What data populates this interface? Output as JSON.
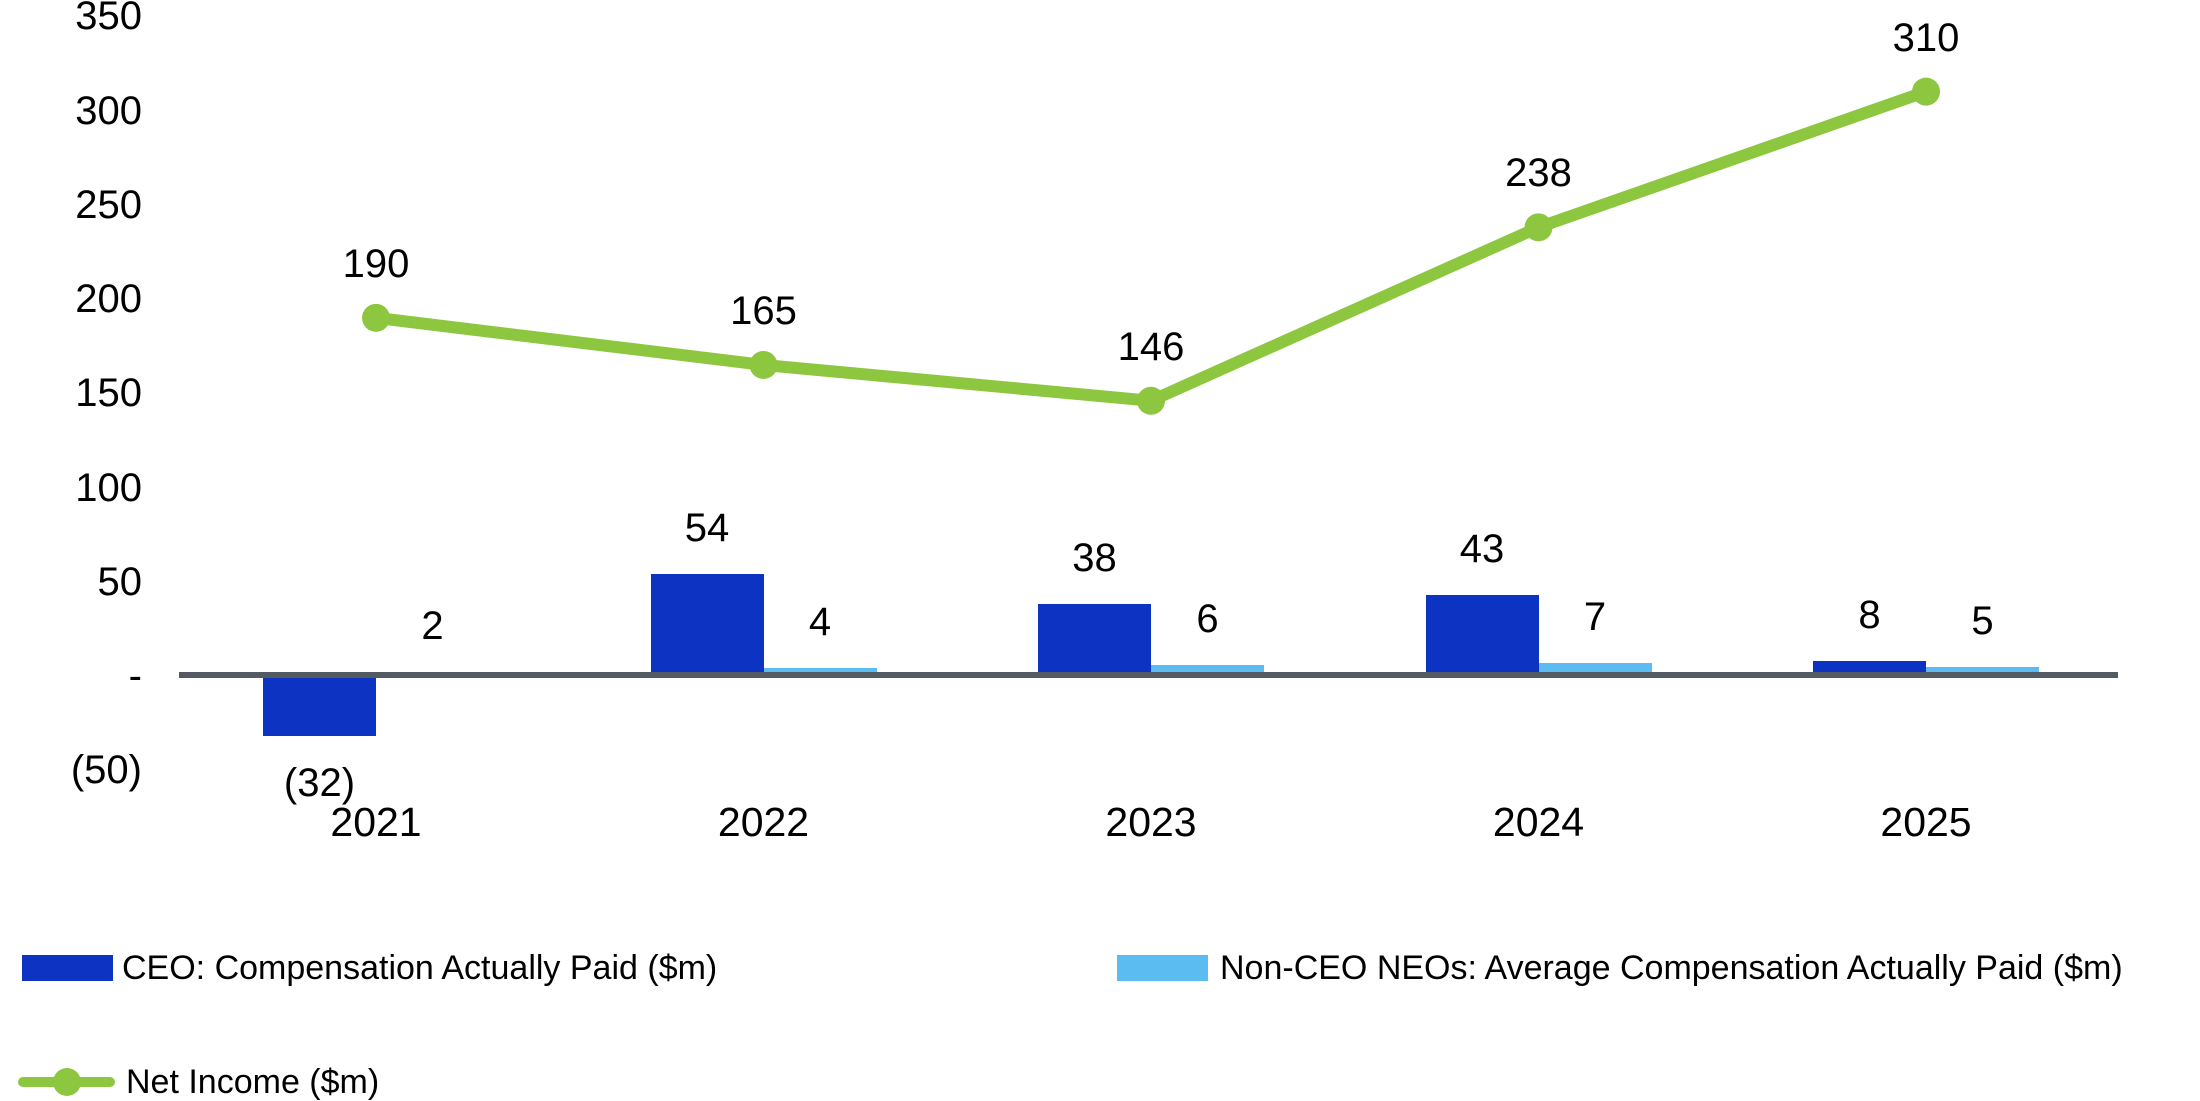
{
  "chart_data": {
    "type": "combo",
    "title": "",
    "categories": [
      "2021",
      "2022",
      "2023",
      "2024",
      "2025"
    ],
    "series": [
      {
        "name": "CEO: Compensation Actually Paid ($m)",
        "type": "bar",
        "color": "#0C33C2",
        "values": [
          -32,
          54,
          38,
          43,
          8
        ],
        "value_labels": [
          "(32)",
          "54",
          "38",
          "43",
          "8"
        ]
      },
      {
        "name": "Non-CEO NEOs: Average Compensation Actually Paid ($m)",
        "type": "bar",
        "color": "#5BBCF1",
        "values": [
          2,
          4,
          6,
          7,
          5
        ],
        "value_labels": [
          "2",
          "4",
          "6",
          "7",
          "5"
        ]
      },
      {
        "name": "Net Income ($m)",
        "type": "line",
        "color": "#8DC63F",
        "values": [
          190,
          165,
          146,
          238,
          310
        ],
        "value_labels": [
          "190",
          "165",
          "146",
          "238",
          "310"
        ]
      }
    ],
    "y_axis": {
      "min": -50,
      "max": 350,
      "tick_interval": 50,
      "ticks": [
        {
          "value": 350,
          "label": "350"
        },
        {
          "value": 300,
          "label": "300"
        },
        {
          "value": 250,
          "label": "250"
        },
        {
          "value": 200,
          "label": "200"
        },
        {
          "value": 150,
          "label": "150"
        },
        {
          "value": 100,
          "label": "100"
        },
        {
          "value": 50,
          "label": "50"
        },
        {
          "value": 0,
          "label": "-"
        },
        {
          "value": -50,
          "label": "(50)"
        }
      ]
    },
    "grid": false,
    "legend_position": "bottom-left",
    "axis_line_color": "#545A62",
    "text_color": "#000000",
    "background": "#FFFFFF"
  }
}
